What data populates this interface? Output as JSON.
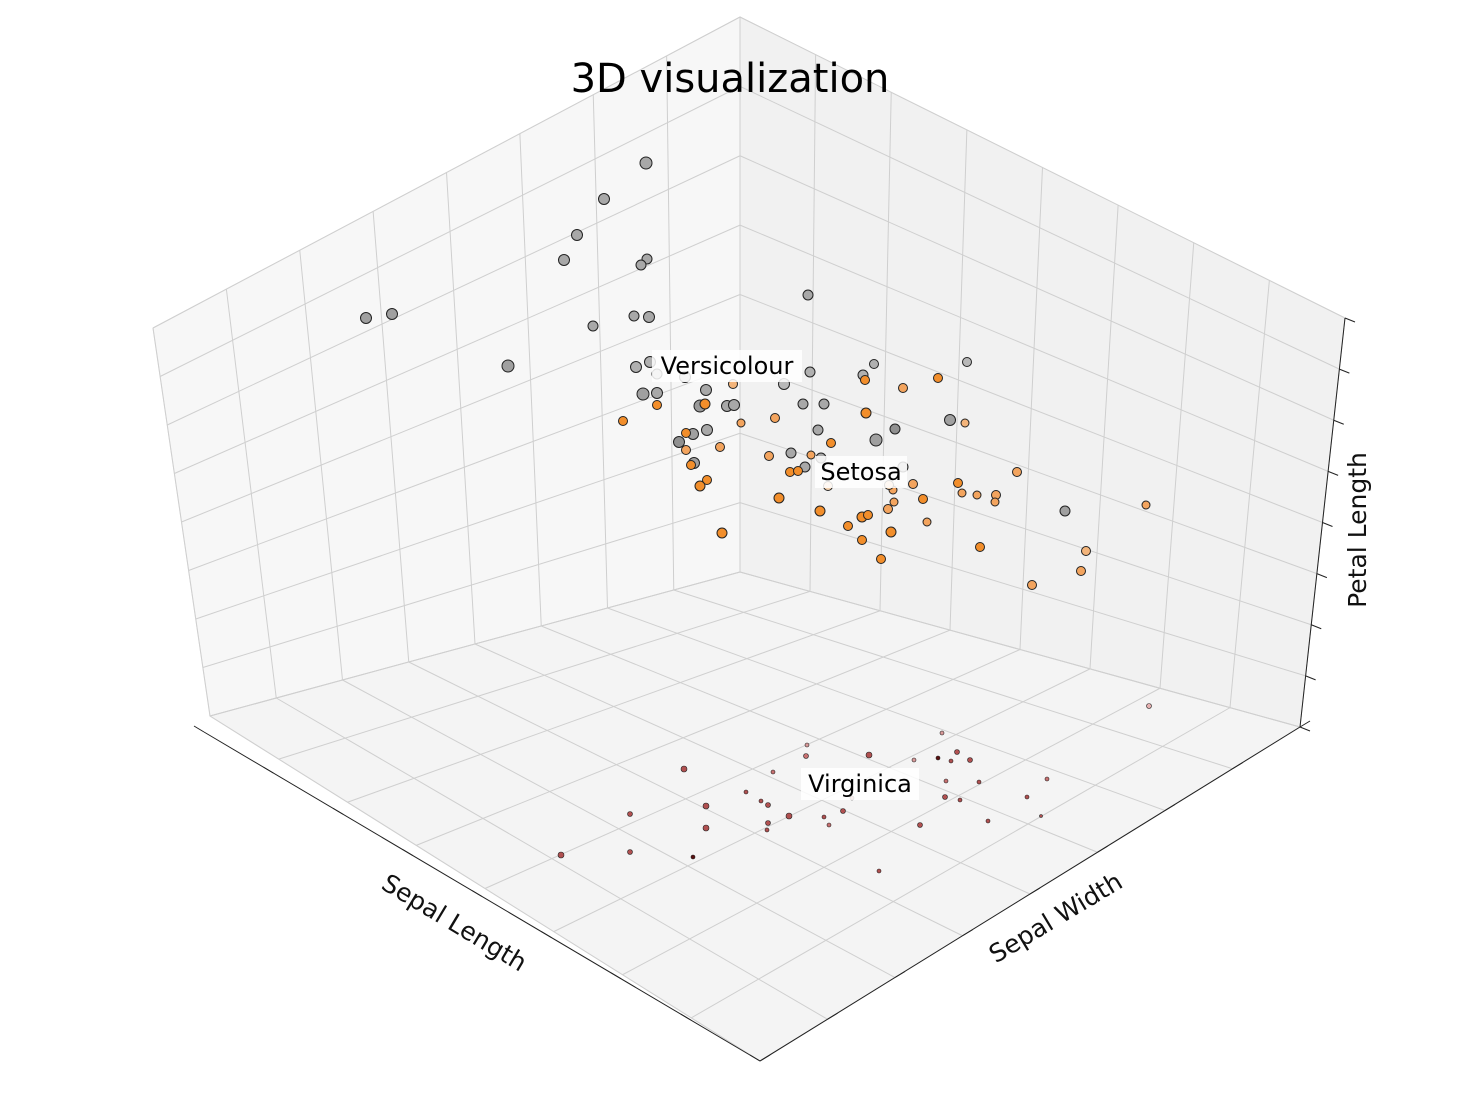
{
  "chart_data": {
    "type": "scatter",
    "title": "3D visualization",
    "xlabel": "Sepal Length",
    "ylabel": "Sepal Width",
    "zlabel": "Petal Length",
    "grid": true,
    "elevation": 48,
    "azimuth": 134,
    "ticks_labeled": false,
    "clusters": [
      {
        "name": "Versicolour",
        "label_position": "upper",
        "color": "#a0a0a0"
      },
      {
        "name": "Setosa",
        "label_position": "middle",
        "color": "#f28e2b"
      },
      {
        "name": "Virginica",
        "label_position": "bottom",
        "color": "#b04848"
      }
    ],
    "points": [
      [
        646,
        163,
        "#a8a8a8",
        11
      ],
      [
        604,
        199,
        "#a8a8a8",
        10
      ],
      [
        577,
        235,
        "#a8a8a8",
        10
      ],
      [
        564,
        260,
        "#a8a8a8",
        10
      ],
      [
        647,
        259,
        "#a8a8a8",
        9
      ],
      [
        641,
        265,
        "#a8a8a8",
        9
      ],
      [
        366,
        318,
        "#a0a0a0",
        10
      ],
      [
        392,
        314,
        "#a0a0a0",
        10
      ],
      [
        593,
        326,
        "#a8a8a8",
        9
      ],
      [
        634,
        316,
        "#a8a8a8",
        9
      ],
      [
        649,
        317,
        "#a8a8a8",
        10
      ],
      [
        808,
        295,
        "#a8a8a8",
        9
      ],
      [
        508,
        366,
        "#a0a0a0",
        11
      ],
      [
        650,
        362,
        "#b0b0b0",
        10
      ],
      [
        636,
        367,
        "#b0b0b0",
        10
      ],
      [
        657,
        374,
        "#b8b8b8",
        9
      ],
      [
        685,
        377,
        "#b8b8b8",
        10
      ],
      [
        706,
        390,
        "#a8a8a8",
        10
      ],
      [
        643,
        394,
        "#a0a0a0",
        11
      ],
      [
        657,
        393,
        "#a8a8a8",
        10
      ],
      [
        700,
        406,
        "#999999",
        11
      ],
      [
        727,
        406,
        "#a8a8a8",
        10
      ],
      [
        734,
        405,
        "#a8a8a8",
        10
      ],
      [
        784,
        384,
        "#b8b8b8",
        10
      ],
      [
        810,
        372,
        "#b0b0b0",
        9
      ],
      [
        803,
        404,
        "#a8a8a8",
        9
      ],
      [
        824,
        404,
        "#a8a8a8",
        9
      ],
      [
        874,
        364,
        "#b0b0b0",
        8
      ],
      [
        863,
        375,
        "#b0b0b0",
        9
      ],
      [
        967,
        362,
        "#b8b8b8",
        8
      ],
      [
        693,
        434,
        "#a0a0a0",
        10
      ],
      [
        707,
        430,
        "#a8a8a8",
        10
      ],
      [
        679,
        442,
        "#909090",
        10
      ],
      [
        694,
        463,
        "#a0a0a0",
        10
      ],
      [
        818,
        430,
        "#a8a8a8",
        9
      ],
      [
        876,
        440,
        "#a0a0a0",
        11
      ],
      [
        895,
        429,
        "#909090",
        9
      ],
      [
        950,
        420,
        "#a0a0a0",
        10
      ],
      [
        791,
        453,
        "#a8a8a8",
        9
      ],
      [
        805,
        467,
        "#a8a8a8",
        9
      ],
      [
        821,
        458,
        "#a8a8a8",
        9
      ],
      [
        903,
        467,
        "#b0b0b0",
        9
      ],
      [
        1065,
        511,
        "#a0a0a0",
        9
      ],
      [
        733,
        384,
        "#f3b47a",
        8
      ],
      [
        705,
        404,
        "#f28e2b",
        9
      ],
      [
        657,
        405,
        "#f28e2b",
        8
      ],
      [
        623,
        421,
        "#f28e2b",
        8
      ],
      [
        686,
        433,
        "#f28e2b",
        8
      ],
      [
        720,
        447,
        "#f3a45e",
        8
      ],
      [
        686,
        450,
        "#f3a45e",
        8
      ],
      [
        691,
        465,
        "#f28e2b",
        8
      ],
      [
        707,
        480,
        "#f28e2b",
        8
      ],
      [
        700,
        486,
        "#f28e2b",
        9
      ],
      [
        741,
        423,
        "#f3a45e",
        7
      ],
      [
        775,
        418,
        "#f3a45e",
        8
      ],
      [
        831,
        443,
        "#f28e2b",
        8
      ],
      [
        866,
        413,
        "#f28e2b",
        9
      ],
      [
        865,
        380,
        "#f28e2b",
        8
      ],
      [
        903,
        388,
        "#f3a45e",
        8
      ],
      [
        938,
        378,
        "#f28e2b",
        8
      ],
      [
        965,
        423,
        "#f3b47a",
        7
      ],
      [
        769,
        456,
        "#f3a45e",
        8
      ],
      [
        790,
        472,
        "#f28e2b",
        8
      ],
      [
        798,
        471,
        "#f28e2b",
        8
      ],
      [
        811,
        455,
        "#f3a45e",
        7
      ],
      [
        828,
        486,
        "#f3d2b0",
        8
      ],
      [
        779,
        498,
        "#f28e2b",
        9
      ],
      [
        722,
        533,
        "#f28e2b",
        9
      ],
      [
        820,
        511,
        "#f28e2b",
        9
      ],
      [
        848,
        526,
        "#f28e2b",
        8
      ],
      [
        862,
        517,
        "#f28e2b",
        9
      ],
      [
        868,
        515,
        "#f28e2b",
        8
      ],
      [
        888,
        509,
        "#f3a45e",
        8
      ],
      [
        894,
        502,
        "#f3a45e",
        7
      ],
      [
        893,
        490,
        "#f3a45e",
        7
      ],
      [
        889,
        485,
        "#f3d2b0",
        8
      ],
      [
        913,
        484,
        "#f3a45e",
        8
      ],
      [
        923,
        499,
        "#f28e2b",
        8
      ],
      [
        927,
        522,
        "#f3a45e",
        7
      ],
      [
        891,
        532,
        "#f28e2b",
        9
      ],
      [
        862,
        540,
        "#f28e2b",
        8
      ],
      [
        881,
        559,
        "#f28e2b",
        8
      ],
      [
        958,
        483,
        "#f28e2b",
        8
      ],
      [
        962,
        493,
        "#f3a45e",
        7
      ],
      [
        977,
        495,
        "#f3a45e",
        7
      ],
      [
        996,
        495,
        "#f3a45e",
        8
      ],
      [
        995,
        502,
        "#f3a45e",
        7
      ],
      [
        1017,
        472,
        "#f3a45e",
        8
      ],
      [
        980,
        547,
        "#f28e2b",
        8
      ],
      [
        1146,
        505,
        "#f3a45e",
        7
      ],
      [
        1086,
        551,
        "#f3b47a",
        8
      ],
      [
        1081,
        571,
        "#f3a45e",
        8
      ],
      [
        1032,
        585,
        "#f3a45e",
        8
      ],
      [
        1149,
        706,
        "#e6b0b0",
        4
      ],
      [
        807,
        745,
        "#d99a9a",
        3
      ],
      [
        806,
        756,
        "#c77070",
        4
      ],
      [
        869,
        755,
        "#b05050",
        5
      ],
      [
        942,
        733,
        "#d99a9a",
        3
      ],
      [
        957,
        752,
        "#b05050",
        4
      ],
      [
        938,
        758,
        "#5a1010",
        3
      ],
      [
        951,
        761,
        "#b05050",
        3
      ],
      [
        970,
        760,
        "#b05050",
        4
      ],
      [
        914,
        760,
        "#d99a9a",
        3
      ],
      [
        684,
        769,
        "#b05050",
        5
      ],
      [
        773,
        772,
        "#c77070",
        3
      ],
      [
        979,
        782,
        "#b05050",
        3
      ],
      [
        1047,
        779,
        "#c77070",
        3
      ],
      [
        946,
        781,
        "#c77070",
        3
      ],
      [
        746,
        792,
        "#b05050",
        3
      ],
      [
        761,
        801,
        "#b05050",
        3
      ],
      [
        768,
        805,
        "#b05050",
        4
      ],
      [
        706,
        806,
        "#b05050",
        5
      ],
      [
        852,
        798,
        "#d99a9a",
        3
      ],
      [
        945,
        797,
        "#b05050",
        4
      ],
      [
        960,
        800,
        "#b05050",
        3
      ],
      [
        1027,
        797,
        "#b05050",
        3
      ],
      [
        1041,
        816,
        "#b05050",
        2
      ],
      [
        630,
        814,
        "#b05050",
        4
      ],
      [
        789,
        816,
        "#b05050",
        5
      ],
      [
        824,
        817,
        "#b05050",
        3
      ],
      [
        843,
        811,
        "#b05050",
        4
      ],
      [
        920,
        825,
        "#b05050",
        4
      ],
      [
        988,
        821,
        "#b05050",
        3
      ],
      [
        768,
        823,
        "#b05050",
        4
      ],
      [
        829,
        825,
        "#c77070",
        3
      ],
      [
        706,
        828,
        "#b05050",
        5
      ],
      [
        767,
        830,
        "#b05050",
        3
      ],
      [
        561,
        855,
        "#b05050",
        5
      ],
      [
        630,
        852,
        "#b05050",
        4
      ],
      [
        693,
        857,
        "#5a1010",
        3
      ],
      [
        879,
        871,
        "#b05050",
        3
      ]
    ]
  }
}
